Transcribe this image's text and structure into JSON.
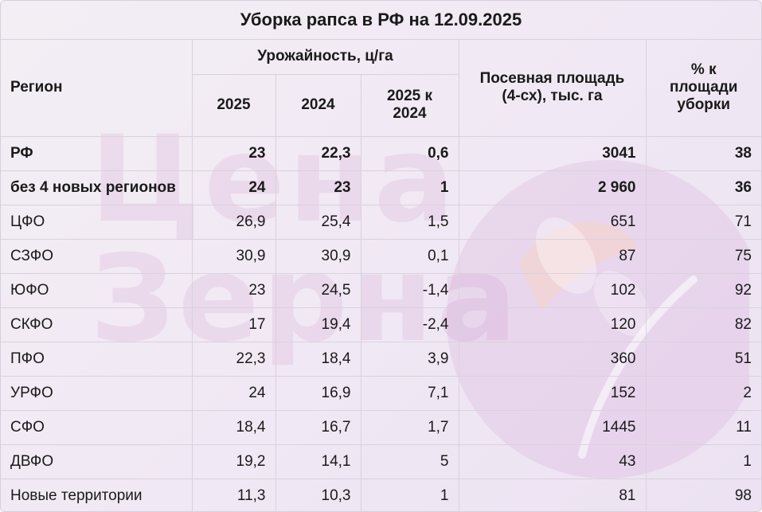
{
  "title": "Уборка рапса в РФ на 12.09.2025",
  "headers": {
    "region": "Регион",
    "yield_group": "Урожайность, ц/га",
    "y2025": "2025",
    "y2024": "2024",
    "diff": "2025 к 2024",
    "area": "Посевная площадь (4-сх), тыс. га",
    "pct": "% к площади уборки"
  },
  "rows": [
    {
      "region": "РФ",
      "y2025": "23",
      "y2024": "22,3",
      "diff": "0,6",
      "area": "3041",
      "pct": "38",
      "bold": true
    },
    {
      "region": "без 4 новых регионов",
      "y2025": "24",
      "y2024": "23",
      "diff": "1",
      "area": "2 960",
      "pct": "36",
      "bold": true
    },
    {
      "region": "ЦФО",
      "y2025": "26,9",
      "y2024": "25,4",
      "diff": "1,5",
      "area": "651",
      "pct": "71",
      "bold": false
    },
    {
      "region": "СЗФО",
      "y2025": "30,9",
      "y2024": "30,9",
      "diff": "0,1",
      "area": "87",
      "pct": "75",
      "bold": false
    },
    {
      "region": "ЮФО",
      "y2025": "23",
      "y2024": "24,5",
      "diff": "-1,4",
      "area": "102",
      "pct": "92",
      "bold": false
    },
    {
      "region": "СКФО",
      "y2025": "17",
      "y2024": "19,4",
      "diff": "-2,4",
      "area": "120",
      "pct": "82",
      "bold": false
    },
    {
      "region": "ПФО",
      "y2025": "22,3",
      "y2024": "18,4",
      "diff": "3,9",
      "area": "360",
      "pct": "51",
      "bold": false
    },
    {
      "region": "УРФО",
      "y2025": "24",
      "y2024": "16,9",
      "diff": "7,1",
      "area": "152",
      "pct": "2",
      "bold": false
    },
    {
      "region": "СФО",
      "y2025": "18,4",
      "y2024": "16,7",
      "diff": "1,7",
      "area": "1445",
      "pct": "11",
      "bold": false
    },
    {
      "region": "ДВФО",
      "y2025": "19,2",
      "y2024": "14,1",
      "diff": "5",
      "area": "43",
      "pct": "1",
      "bold": false
    },
    {
      "region": "Новые территории",
      "y2025": "11,3",
      "y2024": "10,3",
      "diff": "1",
      "area": "81",
      "pct": "98",
      "bold": false
    }
  ],
  "watermark": {
    "text": "Цена\nЗерна",
    "icon": "leaf-logo-icon",
    "color": "#c882be"
  }
}
